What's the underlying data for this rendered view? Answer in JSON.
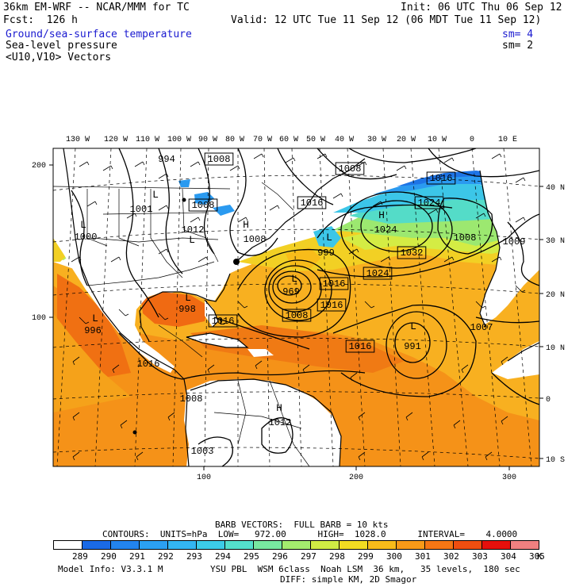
{
  "header": {
    "model": "36km EM-WRF -- NCAR/MMM for TC",
    "init": "Init: 06 UTC Thu 06 Sep 12",
    "fcst": "Fcst:  126 h",
    "valid": "Valid: 12 UTC Tue 11 Sep 12 (06 MDT Tue 11 Sep 12)",
    "field1": "Ground/sea-surface temperature",
    "field1_sm": "sm= 4",
    "field2": "Sea-level pressure",
    "field2_sm": "sm= 2",
    "field3": "<U10,V10> Vectors"
  },
  "map": {
    "top_lon_labels": [
      "130 W",
      "120 W",
      "110 W",
      "100 W",
      "90 W",
      "80 W",
      "70 W",
      "60 W",
      "50 W",
      "40 W",
      "30 W",
      "20 W",
      "10 W",
      "0",
      "10 E"
    ],
    "right_lat_labels": [
      "40 N",
      "30 N",
      "20 N",
      "10 N",
      "0",
      "10 S"
    ],
    "left_grid_labels": [
      "200",
      "100"
    ],
    "bottom_grid_labels": [
      "100",
      "200",
      "300"
    ],
    "pressure_labels": [
      "994",
      "1008",
      "1008",
      "1016",
      "1008",
      "1016",
      "1001",
      "1000",
      "1012",
      "1008",
      "1024",
      "1024",
      "1032",
      "1008",
      "1009",
      "999",
      "1024",
      "969",
      "1016",
      "1016",
      "1008",
      "998",
      "996",
      "1016",
      "1016",
      "991",
      "1007",
      "1016",
      "1008",
      "1012",
      "1003"
    ],
    "centers": [
      "L",
      "L",
      "L",
      "L",
      "L",
      "L",
      "L",
      "L",
      "L",
      "H",
      "H",
      "H"
    ]
  },
  "legend_text": {
    "barb_line": "BARB VECTORS:  FULL BARB = 10 kts",
    "contours_line": "CONTOURS:  UNITS=hPa  LOW=   972.00      HIGH=  1028.0      INTERVAL=    4.0000",
    "unit": "K"
  },
  "colorbar": {
    "colors": [
      "#ffffff",
      "#1a6ae6",
      "#2284ee",
      "#2ba0f2",
      "#33b6f2",
      "#3ccce8",
      "#54e0cc",
      "#78e8a0",
      "#a4ec6e",
      "#d0ec44",
      "#f2dc22",
      "#f8bc1a",
      "#f89a18",
      "#f57614",
      "#ef4e10",
      "#e6100c",
      "#f08080"
    ],
    "labels": [
      "289",
      "290",
      "291",
      "292",
      "293",
      "294",
      "295",
      "296",
      "297",
      "298",
      "299",
      "300",
      "301",
      "302",
      "303",
      "304",
      "305"
    ]
  },
  "footer": {
    "line1": "Model Info: V3.3.1 M         YSU PBL  WSM 6class  Noah LSM  36 km,   35 levels,  180 sec",
    "line2": "DIFF: simple KM, 2D Smagor"
  }
}
